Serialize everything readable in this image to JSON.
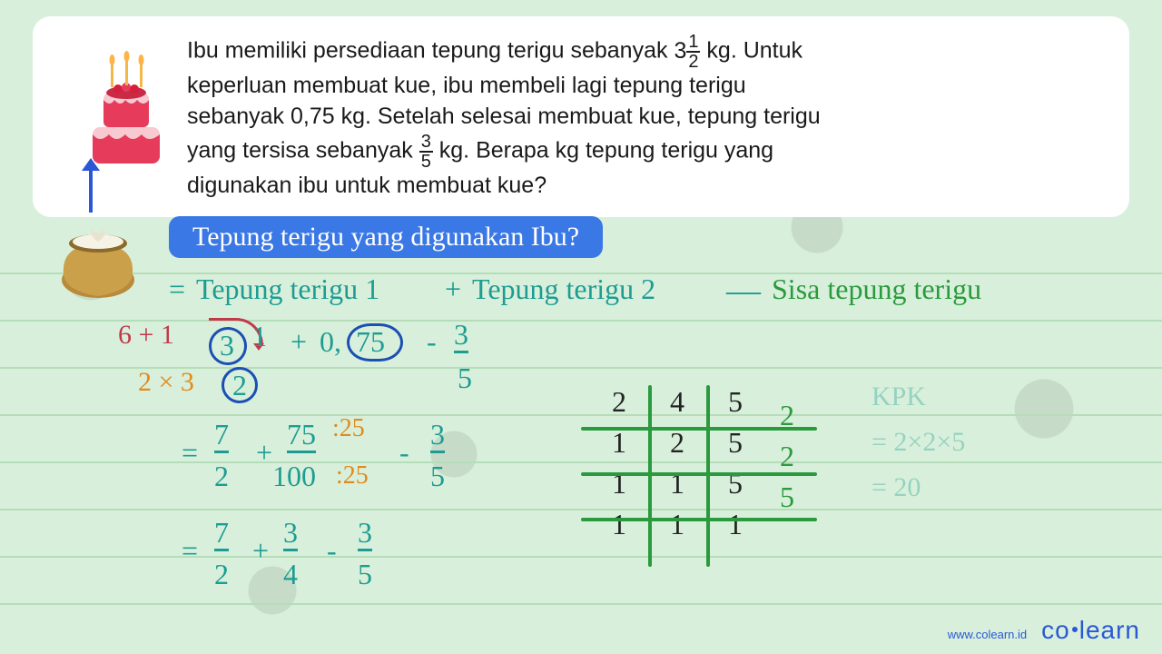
{
  "background_color": "#d8f0db",
  "card_bg": "#ffffff",
  "problem": {
    "line1_pre": "Ibu memiliki persediaan tepung terigu sebanyak ",
    "mixed_whole": "3",
    "mixed_num": "1",
    "mixed_den": "2",
    "line1_post": " kg. Untuk",
    "line2": "keperluan membuat kue, ibu membeli lagi tepung terigu",
    "line3": "sebanyak 0,75 kg. Setelah  selesai membuat kue, tepung terigu",
    "line4_pre": "yang tersisa sebanyak ",
    "frac2_num": "3",
    "frac2_den": "5",
    "line4_post": " kg. Berapa kg tepung terigu yang",
    "line5": "digunakan ibu untuk membuat kue?"
  },
  "banner": "Tepung terigu yang digunakan Ibu?",
  "formula": {
    "eq": "=",
    "t1": "Tepung terigu 1",
    "plus": "+",
    "t2": "Tepung terigu 2",
    "minus": "—",
    "sisa": "Sisa tepung terigu"
  },
  "step1": {
    "carry": "6 + 1",
    "whole": "3",
    "num": "1",
    "plus": "+",
    "dec_pre": "0,",
    "dec_circ": "75",
    "minus": "-",
    "f_num": "3",
    "den_row_pre": "2 × 3",
    "den_circ": "2",
    "f_den": "5"
  },
  "step2": {
    "eq": "=",
    "a_num": "7",
    "a_den": "2",
    "plus": "+",
    "b_num": "75",
    "b_den": "100",
    "div_label": ":25",
    "minus": "-",
    "c_num": "3",
    "c_den": "5"
  },
  "step3": {
    "eq": "=",
    "a_num": "7",
    "a_den": "2",
    "plus": "+",
    "b_num": "3",
    "b_den": "4",
    "minus": "-",
    "c_num": "3",
    "c_den": "5"
  },
  "kpk": {
    "label": "KPK",
    "result1": "= 2×2×5",
    "result2": "= 20",
    "rows": [
      {
        "cells": [
          "2",
          "4",
          "5"
        ],
        "div": "2"
      },
      {
        "cells": [
          "1",
          "2",
          "5"
        ],
        "div": "2"
      },
      {
        "cells": [
          "1",
          "1",
          "5"
        ],
        "div": "5"
      },
      {
        "cells": [
          "1",
          "1",
          "1"
        ],
        "div": ""
      }
    ],
    "line_color": "#2b9a3e"
  },
  "colors": {
    "teal": "#1e9c93",
    "green": "#2b9a3e",
    "orange": "#e28a1a",
    "crimson": "#c03a4a",
    "blue": "#1b4fb3",
    "banner_bg": "#3a78e6"
  },
  "footer": {
    "url": "www.colearn.id",
    "logo_a": "co",
    "logo_b": "learn"
  },
  "line_positions": [
    300,
    352,
    404,
    456,
    508,
    560,
    612,
    664
  ],
  "icons": {
    "cake_emoji": "",
    "bag_emoji": ""
  }
}
